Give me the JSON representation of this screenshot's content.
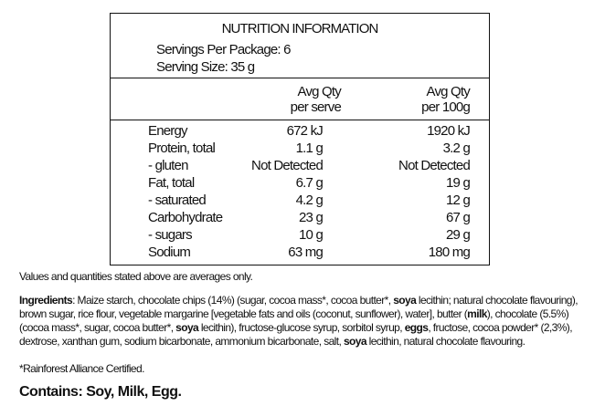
{
  "panel": {
    "title": "NUTRITION INFORMATION",
    "servings": "Servings Per Package: 6",
    "serving_size": "Serving Size: 35 g",
    "col1_header": [
      "Avg Qty",
      "per serve"
    ],
    "col2_header": [
      "Avg Qty",
      "per 100g"
    ],
    "rows": [
      {
        "label": "Energy",
        "per_serve": "672 kJ",
        "per_100g": "1920 kJ"
      },
      {
        "label": "Protein, total",
        "per_serve": "1.1 g",
        "per_100g": "3.2 g"
      },
      {
        "label": "- gluten",
        "per_serve": "Not Detected",
        "per_100g": "Not Detected"
      },
      {
        "label": "Fat, total",
        "per_serve": "6.7 g",
        "per_100g": "19 g"
      },
      {
        "label": "- saturated",
        "per_serve": "4.2 g",
        "per_100g": "12 g"
      },
      {
        "label": "Carbohydrate",
        "per_serve": "23 g",
        "per_100g": "67 g"
      },
      {
        "label": "- sugars",
        "per_serve": "10 g",
        "per_100g": "29 g"
      },
      {
        "label": "Sodium",
        "per_serve": "63 mg",
        "per_100g": "180 mg"
      }
    ]
  },
  "note": "Values and quantities stated above are averages only.",
  "ingredients": {
    "heading": "Ingredients",
    "parts": [
      {
        "text": ": Maize starch, chocolate chips (14%) (sugar, cocoa mass*, cocoa butter*, ",
        "bold": false
      },
      {
        "text": "soya",
        "bold": true
      },
      {
        "text": " lecithin; natural chocolate flavouring), brown sugar, rice flour, vegetable margarine [vegetable fats and oils (coconut, sunflower), water], butter (",
        "bold": false
      },
      {
        "text": "milk",
        "bold": true
      },
      {
        "text": "), chocolate (5.5%) (cocoa mass*, sugar, cocoa butter*, ",
        "bold": false
      },
      {
        "text": "soya",
        "bold": true
      },
      {
        "text": " lecithin), fructose-glucose syrup, sorbitol syrup, ",
        "bold": false
      },
      {
        "text": "eggs",
        "bold": true
      },
      {
        "text": ", fructose, cocoa powder* (2,3%), dextrose, xanthan gum, sodium bicarbonate, ammonium bicarbonate, salt, ",
        "bold": false
      },
      {
        "text": "soya",
        "bold": true
      },
      {
        "text": " lecithin, natural chocolate flavouring.",
        "bold": false
      }
    ]
  },
  "certification": "*Rainforest Alliance Certified.",
  "contains": "Contains: Soy, Milk, Egg."
}
